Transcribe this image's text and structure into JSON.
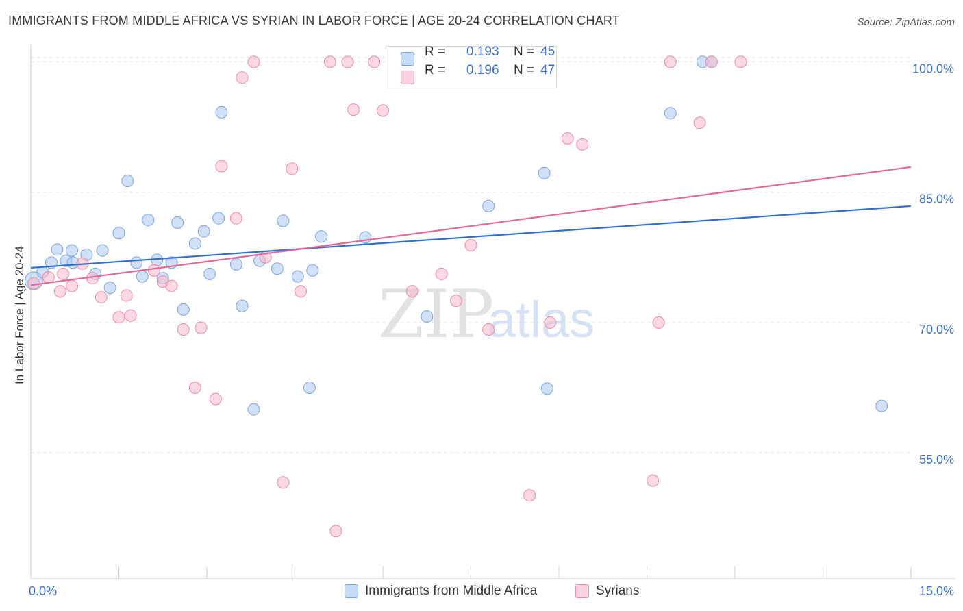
{
  "title": "IMMIGRANTS FROM MIDDLE AFRICA VS SYRIAN IN LABOR FORCE | AGE 20-24 CORRELATION CHART",
  "source": "Source: ZipAtlas.com",
  "watermark": {
    "zip": "ZIP",
    "atlas": "atlas"
  },
  "stats": [
    {
      "r_label": "R =",
      "r": "0.193",
      "n_label": "N =",
      "n": "45",
      "color": "#aac8f0"
    },
    {
      "r_label": "R =",
      "r": "0.196",
      "n_label": "N =",
      "n": "47",
      "color": "#f7b8cb"
    }
  ],
  "chart_data": {
    "type": "scatter",
    "title": "IMMIGRANTS FROM MIDDLE AFRICA VS SYRIAN IN LABOR FORCE | AGE 20-24 CORRELATION CHART",
    "xlabel": "",
    "ylabel": "In Labor Force | Age 20-24",
    "xlim": [
      0,
      15
    ],
    "ylim": [
      40.5,
      102
    ],
    "x_tick_labels": [
      "0.0%",
      "15.0%"
    ],
    "y_ticks": [
      55,
      70,
      85,
      100
    ],
    "y_tick_labels": [
      "55.0%",
      "70.0%",
      "85.0%",
      "100.0%"
    ],
    "grid": true,
    "legend_position": "bottom",
    "series": [
      {
        "name": "Immigrants from Middle Africa",
        "color": "#aac8f0",
        "stroke": "#7aa4dc",
        "trend": {
          "x": [
            0,
            15
          ],
          "y": [
            76.3,
            83.4
          ],
          "color": "#2e6fd0"
        },
        "points": [
          [
            0.05,
            74.8
          ],
          [
            0.2,
            75.8
          ],
          [
            0.35,
            76.9
          ],
          [
            0.45,
            78.4
          ],
          [
            0.6,
            77.1
          ],
          [
            0.7,
            78.3
          ],
          [
            0.72,
            76.9
          ],
          [
            0.95,
            77.8
          ],
          [
            1.1,
            75.6
          ],
          [
            1.22,
            78.3
          ],
          [
            1.35,
            74.0
          ],
          [
            1.5,
            80.3
          ],
          [
            1.65,
            86.3
          ],
          [
            1.8,
            76.9
          ],
          [
            1.9,
            75.3
          ],
          [
            2.0,
            81.8
          ],
          [
            2.15,
            77.2
          ],
          [
            2.25,
            75.1
          ],
          [
            2.4,
            76.9
          ],
          [
            2.5,
            81.5
          ],
          [
            2.6,
            71.5
          ],
          [
            2.8,
            79.1
          ],
          [
            2.95,
            80.5
          ],
          [
            3.05,
            75.6
          ],
          [
            3.2,
            82.0
          ],
          [
            3.25,
            94.2
          ],
          [
            3.5,
            76.7
          ],
          [
            3.6,
            71.9
          ],
          [
            3.8,
            60.0
          ],
          [
            3.9,
            77.1
          ],
          [
            4.2,
            76.2
          ],
          [
            4.3,
            81.7
          ],
          [
            4.55,
            75.3
          ],
          [
            4.75,
            62.5
          ],
          [
            4.8,
            76.0
          ],
          [
            4.95,
            79.9
          ],
          [
            5.7,
            79.8
          ],
          [
            6.75,
            70.7
          ],
          [
            7.8,
            83.4
          ],
          [
            8.75,
            87.2
          ],
          [
            8.8,
            62.4
          ],
          [
            10.9,
            94.1
          ],
          [
            11.45,
            100.0
          ],
          [
            11.6,
            100.0
          ],
          [
            14.5,
            60.4
          ]
        ]
      },
      {
        "name": "Syrians",
        "color": "#f7b8cb",
        "stroke": "#e88aa8",
        "trend": {
          "x": [
            0,
            15
          ],
          "y": [
            74.3,
            87.9
          ],
          "color": "#e2679a"
        },
        "points": [
          [
            0.05,
            74.5
          ],
          [
            0.3,
            75.2
          ],
          [
            0.5,
            73.6
          ],
          [
            0.7,
            74.2
          ],
          [
            0.88,
            76.8
          ],
          [
            1.05,
            75.1
          ],
          [
            1.2,
            72.9
          ],
          [
            1.5,
            70.6
          ],
          [
            1.63,
            73.1
          ],
          [
            1.7,
            70.8
          ],
          [
            2.1,
            76.0
          ],
          [
            2.25,
            74.7
          ],
          [
            2.4,
            74.2
          ],
          [
            2.6,
            69.2
          ],
          [
            2.8,
            62.5
          ],
          [
            2.9,
            69.4
          ],
          [
            3.15,
            61.2
          ],
          [
            3.25,
            88.0
          ],
          [
            3.5,
            82.0
          ],
          [
            3.6,
            98.2
          ],
          [
            3.8,
            100.0
          ],
          [
            4.0,
            77.5
          ],
          [
            4.3,
            51.6
          ],
          [
            4.45,
            87.7
          ],
          [
            4.6,
            73.6
          ],
          [
            5.1,
            100.0
          ],
          [
            5.2,
            46.0
          ],
          [
            5.4,
            100.0
          ],
          [
            5.5,
            94.5
          ],
          [
            5.85,
            100.0
          ],
          [
            6.0,
            94.4
          ],
          [
            6.5,
            73.6
          ],
          [
            7.0,
            75.6
          ],
          [
            7.25,
            72.5
          ],
          [
            7.5,
            78.9
          ],
          [
            7.8,
            69.2
          ],
          [
            8.5,
            50.1
          ],
          [
            8.85,
            70.0
          ],
          [
            9.15,
            91.2
          ],
          [
            9.4,
            90.5
          ],
          [
            10.7,
            70.0
          ],
          [
            10.6,
            51.8
          ],
          [
            10.9,
            100.0
          ],
          [
            11.4,
            93.0
          ],
          [
            11.6,
            100.0
          ],
          [
            12.1,
            100.0
          ],
          [
            0.55,
            75.6
          ]
        ]
      }
    ]
  }
}
